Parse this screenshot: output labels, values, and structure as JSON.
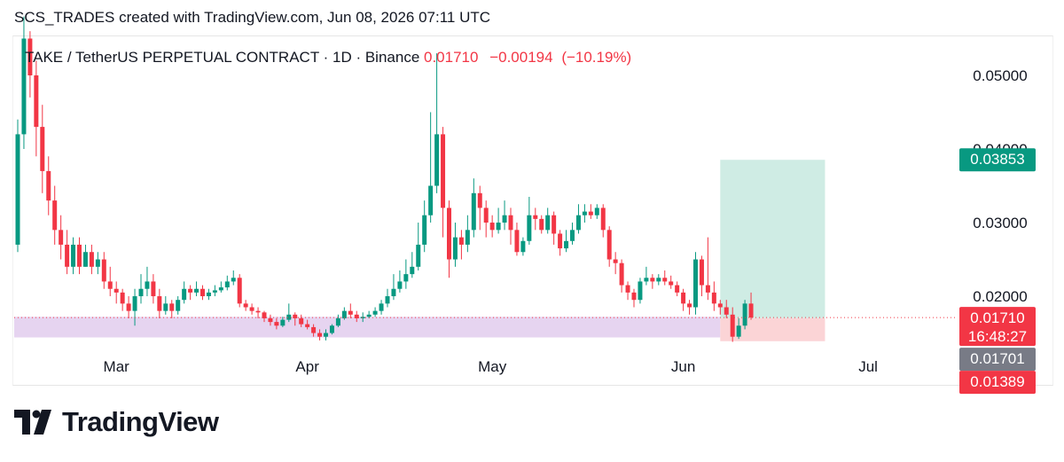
{
  "header": {
    "caption": "SCS_TRADES created with TradingView.com, Jun 08, 2026 07:11 UTC"
  },
  "footer": {
    "brand": "TradingView"
  },
  "colors": {
    "up": "#089981",
    "down": "#f23645",
    "support_zone": "#e6d4f0",
    "target_zone": "#cfece4",
    "stop_zone": "#fbd4d6"
  },
  "chart_data": {
    "type": "candlestick",
    "title": "TAKE / TetherUS PERPETUAL CONTRACT · 1D · Binance",
    "last_price": "0.01710",
    "change": "−0.00194",
    "change_pct": "(−10.19%)",
    "y_ticks": [
      "0.05000",
      "0.04000",
      "0.03000",
      "0.02000"
    ],
    "y_tick_values": [
      0.05,
      0.04,
      0.03,
      0.02
    ],
    "ylim": [
      0.0082,
      0.0553
    ],
    "x_ticks": [
      {
        "label": "Mar",
        "day": 16
      },
      {
        "label": "Apr",
        "day": 47
      },
      {
        "label": "May",
        "day": 77
      },
      {
        "label": "Jun",
        "day": 108
      },
      {
        "label": "Jul",
        "day": 138
      }
    ],
    "xlim": [
      0,
      165
    ],
    "price_labels": {
      "target": "0.03853",
      "current": "0.01710",
      "countdown": "16:48:27",
      "entry": "0.01701",
      "stop": "0.01389"
    },
    "support_zone": {
      "y_low": 0.0144,
      "y_high": 0.0172,
      "x_from": 0,
      "x_to": 114
    },
    "position": {
      "target": 0.03853,
      "entry": 0.01701,
      "stop": 0.01389,
      "x_from": 114,
      "x_to": 131
    },
    "candles": [
      [
        0.027,
        0.042,
        0.044,
        0.026
      ],
      [
        0.042,
        0.055,
        0.058,
        0.04
      ],
      [
        0.055,
        0.05,
        0.056,
        0.047
      ],
      [
        0.05,
        0.043,
        0.052,
        0.039
      ],
      [
        0.043,
        0.037,
        0.046,
        0.034
      ],
      [
        0.037,
        0.033,
        0.039,
        0.031
      ],
      [
        0.033,
        0.029,
        0.035,
        0.027
      ],
      [
        0.029,
        0.027,
        0.031,
        0.025
      ],
      [
        0.027,
        0.024,
        0.029,
        0.023
      ],
      [
        0.024,
        0.027,
        0.028,
        0.023
      ],
      [
        0.027,
        0.024,
        0.028,
        0.023
      ],
      [
        0.024,
        0.026,
        0.027,
        0.024
      ],
      [
        0.026,
        0.024,
        0.027,
        0.023
      ],
      [
        0.024,
        0.025,
        0.026,
        0.023
      ],
      [
        0.025,
        0.022,
        0.026,
        0.021
      ],
      [
        0.022,
        0.021,
        0.024,
        0.02
      ],
      [
        0.021,
        0.0205,
        0.022,
        0.019
      ],
      [
        0.0205,
        0.019,
        0.021,
        0.018
      ],
      [
        0.019,
        0.018,
        0.02,
        0.017
      ],
      [
        0.018,
        0.02,
        0.021,
        0.016
      ],
      [
        0.02,
        0.021,
        0.023,
        0.019
      ],
      [
        0.021,
        0.022,
        0.024,
        0.02
      ],
      [
        0.022,
        0.02,
        0.023,
        0.019
      ],
      [
        0.02,
        0.018,
        0.021,
        0.017
      ],
      [
        0.018,
        0.019,
        0.02,
        0.0175
      ],
      [
        0.019,
        0.018,
        0.0195,
        0.017
      ],
      [
        0.018,
        0.0195,
        0.02,
        0.0175
      ],
      [
        0.0195,
        0.021,
        0.022,
        0.019
      ],
      [
        0.021,
        0.0205,
        0.0215,
        0.0195
      ],
      [
        0.0205,
        0.021,
        0.022,
        0.02
      ],
      [
        0.021,
        0.02,
        0.0215,
        0.0195
      ],
      [
        0.02,
        0.0205,
        0.021,
        0.0195
      ],
      [
        0.0205,
        0.0208,
        0.0215,
        0.02
      ],
      [
        0.0208,
        0.0212,
        0.022,
        0.0205
      ],
      [
        0.0212,
        0.022,
        0.0228,
        0.0208
      ],
      [
        0.022,
        0.0225,
        0.0235,
        0.0215
      ],
      [
        0.0225,
        0.019,
        0.023,
        0.0185
      ],
      [
        0.019,
        0.0185,
        0.0195,
        0.018
      ],
      [
        0.0185,
        0.018,
        0.019,
        0.0175
      ],
      [
        0.018,
        0.0178,
        0.0185,
        0.017
      ],
      [
        0.0178,
        0.017,
        0.018,
        0.0165
      ],
      [
        0.017,
        0.0165,
        0.0175,
        0.016
      ],
      [
        0.0165,
        0.016,
        0.017,
        0.0155
      ],
      [
        0.016,
        0.0168,
        0.0172,
        0.0158
      ],
      [
        0.0168,
        0.0175,
        0.019,
        0.0165
      ],
      [
        0.0175,
        0.017,
        0.0178,
        0.016
      ],
      [
        0.017,
        0.0162,
        0.0175,
        0.0158
      ],
      [
        0.0162,
        0.0158,
        0.0168,
        0.0155
      ],
      [
        0.0158,
        0.015,
        0.0162,
        0.0145
      ],
      [
        0.015,
        0.0145,
        0.0155,
        0.014
      ],
      [
        0.0145,
        0.015,
        0.0155,
        0.014
      ],
      [
        0.015,
        0.016,
        0.0162,
        0.0148
      ],
      [
        0.016,
        0.017,
        0.0175,
        0.0158
      ],
      [
        0.017,
        0.018,
        0.0185,
        0.0168
      ],
      [
        0.018,
        0.0175,
        0.019,
        0.017
      ],
      [
        0.0175,
        0.017,
        0.018,
        0.0165
      ],
      [
        0.017,
        0.0172,
        0.0178,
        0.0165
      ],
      [
        0.0172,
        0.0175,
        0.018,
        0.017
      ],
      [
        0.0175,
        0.018,
        0.0185,
        0.0172
      ],
      [
        0.018,
        0.019,
        0.0195,
        0.0175
      ],
      [
        0.019,
        0.02,
        0.021,
        0.0185
      ],
      [
        0.02,
        0.021,
        0.023,
        0.0195
      ],
      [
        0.021,
        0.022,
        0.0235,
        0.0205
      ],
      [
        0.022,
        0.023,
        0.025,
        0.021
      ],
      [
        0.023,
        0.024,
        0.026,
        0.0225
      ],
      [
        0.024,
        0.027,
        0.03,
        0.0235
      ],
      [
        0.027,
        0.031,
        0.033,
        0.026
      ],
      [
        0.031,
        0.035,
        0.045,
        0.03
      ],
      [
        0.035,
        0.042,
        0.053,
        0.034
      ],
      [
        0.042,
        0.032,
        0.043,
        0.028
      ],
      [
        0.032,
        0.025,
        0.033,
        0.0225
      ],
      [
        0.025,
        0.028,
        0.03,
        0.024
      ],
      [
        0.028,
        0.027,
        0.029,
        0.025
      ],
      [
        0.027,
        0.029,
        0.031,
        0.026
      ],
      [
        0.029,
        0.034,
        0.036,
        0.028
      ],
      [
        0.034,
        0.032,
        0.035,
        0.029
      ],
      [
        0.032,
        0.03,
        0.033,
        0.028
      ],
      [
        0.03,
        0.029,
        0.031,
        0.028
      ],
      [
        0.029,
        0.03,
        0.032,
        0.0285
      ],
      [
        0.03,
        0.031,
        0.033,
        0.029
      ],
      [
        0.031,
        0.029,
        0.032,
        0.027
      ],
      [
        0.029,
        0.026,
        0.03,
        0.0255
      ],
      [
        0.026,
        0.0275,
        0.028,
        0.0255
      ],
      [
        0.0275,
        0.031,
        0.0335,
        0.027
      ],
      [
        0.031,
        0.0305,
        0.032,
        0.029
      ],
      [
        0.0305,
        0.029,
        0.031,
        0.0285
      ],
      [
        0.029,
        0.031,
        0.032,
        0.0285
      ],
      [
        0.031,
        0.0285,
        0.0315,
        0.027
      ],
      [
        0.0285,
        0.0265,
        0.029,
        0.0255
      ],
      [
        0.0265,
        0.0275,
        0.029,
        0.026
      ],
      [
        0.0275,
        0.029,
        0.03,
        0.027
      ],
      [
        0.029,
        0.031,
        0.0325,
        0.0285
      ],
      [
        0.031,
        0.0315,
        0.0325,
        0.03
      ],
      [
        0.0315,
        0.031,
        0.0325,
        0.0305
      ],
      [
        0.031,
        0.032,
        0.0325,
        0.0305
      ],
      [
        0.032,
        0.029,
        0.0325,
        0.028
      ],
      [
        0.029,
        0.025,
        0.0295,
        0.024
      ],
      [
        0.025,
        0.0245,
        0.026,
        0.023
      ],
      [
        0.0245,
        0.0215,
        0.025,
        0.0205
      ],
      [
        0.0215,
        0.0205,
        0.022,
        0.0195
      ],
      [
        0.0205,
        0.0195,
        0.021,
        0.0185
      ],
      [
        0.0195,
        0.022,
        0.0225,
        0.019
      ],
      [
        0.022,
        0.0225,
        0.024,
        0.0215
      ],
      [
        0.0225,
        0.022,
        0.023,
        0.021
      ],
      [
        0.022,
        0.0225,
        0.023,
        0.0215
      ],
      [
        0.0225,
        0.022,
        0.0235,
        0.0215
      ],
      [
        0.022,
        0.0215,
        0.0228,
        0.021
      ],
      [
        0.0215,
        0.0205,
        0.022,
        0.02
      ],
      [
        0.0205,
        0.019,
        0.021,
        0.018
      ],
      [
        0.019,
        0.0185,
        0.0195,
        0.0175
      ],
      [
        0.0185,
        0.025,
        0.026,
        0.0175
      ],
      [
        0.025,
        0.0215,
        0.0255,
        0.02
      ],
      [
        0.0215,
        0.0205,
        0.028,
        0.0195
      ],
      [
        0.0205,
        0.019,
        0.022,
        0.018
      ],
      [
        0.019,
        0.0185,
        0.0195,
        0.0175
      ],
      [
        0.0185,
        0.0175,
        0.0195,
        0.017
      ],
      [
        0.0175,
        0.0145,
        0.0185,
        0.0138
      ],
      [
        0.0145,
        0.016,
        0.017,
        0.0142
      ],
      [
        0.016,
        0.019,
        0.0195,
        0.0155
      ],
      [
        0.019,
        0.0171,
        0.0205,
        0.0168
      ]
    ]
  }
}
